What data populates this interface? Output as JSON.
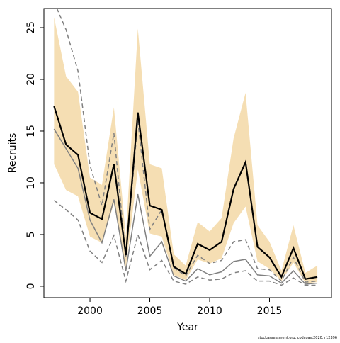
{
  "chart_data": {
    "type": "line",
    "x_label": "Year",
    "y_label": "Recruits",
    "footnote": "stockassessment.org, codcoast2020, r12396",
    "x": [
      1997,
      1998,
      1999,
      2000,
      2001,
      2002,
      2003,
      2004,
      2005,
      2006,
      2007,
      2008,
      2009,
      2010,
      2011,
      2012,
      2013,
      2014,
      2015,
      2016,
      2017,
      2018,
      2019
    ],
    "band": {
      "color": "#f5deb3",
      "upper": [
        26,
        20.3,
        18.8,
        10.5,
        9.8,
        17.3,
        4.8,
        24.9,
        11.8,
        11.4,
        3.1,
        2.0,
        6.2,
        5.3,
        6.6,
        14.3,
        18.7,
        5.9,
        4.3,
        1.5,
        5.9,
        1.3,
        2.0
      ],
      "lower": [
        11.8,
        9.3,
        8.7,
        4.8,
        4.2,
        8.0,
        1.8,
        11.3,
        5.1,
        4.8,
        1.1,
        0.6,
        2.6,
        2.2,
        2.7,
        6.1,
        7.7,
        2.4,
        1.7,
        0.5,
        2.3,
        0.3,
        0.4
      ]
    },
    "series": [
      {
        "color": "#808080",
        "dash": true,
        "width": 1.5,
        "values": [
          27.5,
          24.8,
          20.8,
          11.7,
          7.8,
          14.8,
          2.8,
          16.0,
          5.5,
          7.4,
          1.8,
          1.0,
          3.0,
          2.2,
          2.5,
          4.3,
          4.5,
          1.7,
          1.6,
          0.5,
          2.8,
          0.4,
          0.5
        ]
      },
      {
        "color": "#808080",
        "dash": true,
        "width": 1.5,
        "values": [
          8.3,
          7.4,
          6.4,
          3.4,
          2.3,
          4.9,
          0.5,
          5.0,
          1.6,
          2.5,
          0.5,
          0.2,
          0.9,
          0.6,
          0.7,
          1.3,
          1.5,
          0.5,
          0.5,
          0.1,
          0.8,
          0.1,
          0.1
        ]
      },
      {
        "color": "#808080",
        "dash": false,
        "width": 1.5,
        "values": [
          15.2,
          13.3,
          11.4,
          6.4,
          4.2,
          8.4,
          1.5,
          8.9,
          2.9,
          4.3,
          1.0,
          0.5,
          1.7,
          1.1,
          1.4,
          2.4,
          2.6,
          1.1,
          1.0,
          0.3,
          1.5,
          0.2,
          0.3
        ]
      },
      {
        "color": "#000000",
        "dash": false,
        "width": 2.2,
        "values": [
          17.4,
          13.7,
          12.7,
          7.1,
          6.5,
          11.8,
          3.0,
          16.8,
          7.8,
          7.4,
          1.9,
          1.2,
          4.1,
          3.5,
          4.3,
          9.4,
          12.0,
          3.8,
          2.8,
          0.9,
          3.7,
          0.7,
          0.9
        ]
      }
    ],
    "xlim": [
      1996.15,
      2020.18
    ],
    "ylim": [
      -1.1,
      26.85
    ],
    "xticks": [
      2000,
      2005,
      2010,
      2015
    ],
    "yticks": [
      0,
      5,
      10,
      15,
      20,
      25
    ]
  }
}
